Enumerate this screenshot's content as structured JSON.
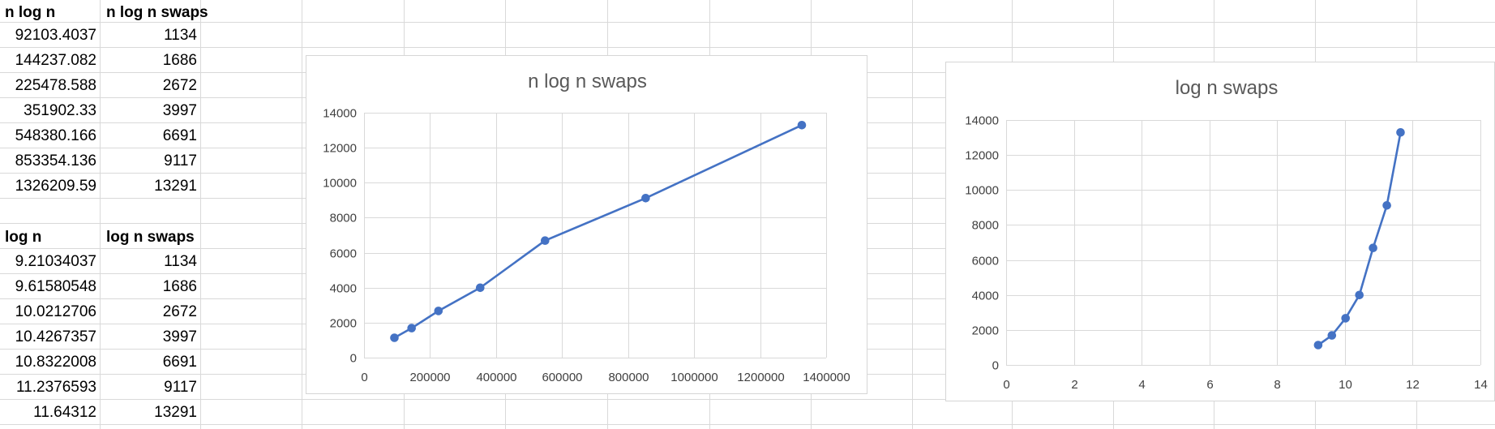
{
  "sheet": {
    "table1": {
      "headers": [
        "n log n",
        "n log n swaps"
      ],
      "rows": [
        [
          "92103.4037",
          "1134"
        ],
        [
          "144237.082",
          "1686"
        ],
        [
          "225478.588",
          "2672"
        ],
        [
          "351902.33",
          "3997"
        ],
        [
          "548380.166",
          "6691"
        ],
        [
          "853354.136",
          "9117"
        ],
        [
          "1326209.59",
          "13291"
        ]
      ]
    },
    "table2": {
      "headers": [
        "log n",
        "log n swaps"
      ],
      "rows": [
        [
          "9.21034037",
          "1134"
        ],
        [
          "9.61580548",
          "1686"
        ],
        [
          "10.0212706",
          "2672"
        ],
        [
          "10.4267357",
          "3997"
        ],
        [
          "10.8322008",
          "6691"
        ],
        [
          "11.2376593",
          "9117"
        ],
        [
          "11.64312",
          "13291"
        ]
      ]
    }
  },
  "chart_data": [
    {
      "type": "scatter",
      "title": "n log n swaps",
      "xlabel": "",
      "ylabel": "",
      "xlim": [
        0,
        1400000
      ],
      "ylim": [
        0,
        14000
      ],
      "xticks": [
        0,
        200000,
        400000,
        600000,
        800000,
        1000000,
        1200000,
        1400000
      ],
      "yticks": [
        0,
        2000,
        4000,
        6000,
        8000,
        10000,
        12000,
        14000
      ],
      "grid": true,
      "legend": "none",
      "line": true,
      "markers": true,
      "color": "#4472c4",
      "x": [
        92103.4037,
        144237.082,
        225478.588,
        351902.33,
        548380.166,
        853354.136,
        1326209.59
      ],
      "y": [
        1134,
        1686,
        2672,
        3997,
        6691,
        9117,
        13291
      ]
    },
    {
      "type": "scatter",
      "title": "log n swaps",
      "xlabel": "",
      "ylabel": "",
      "xlim": [
        0,
        14
      ],
      "ylim": [
        0,
        14000
      ],
      "xticks": [
        0,
        2,
        4,
        6,
        8,
        10,
        12,
        14
      ],
      "yticks": [
        0,
        2000,
        4000,
        6000,
        8000,
        10000,
        12000,
        14000
      ],
      "grid": true,
      "legend": "none",
      "line": true,
      "markers": true,
      "color": "#4472c4",
      "x": [
        9.21034037,
        9.61580548,
        10.0212706,
        10.4267357,
        10.8322008,
        11.2376593,
        11.64312
      ],
      "y": [
        1134,
        1686,
        2672,
        3997,
        6691,
        9117,
        13291
      ]
    }
  ]
}
